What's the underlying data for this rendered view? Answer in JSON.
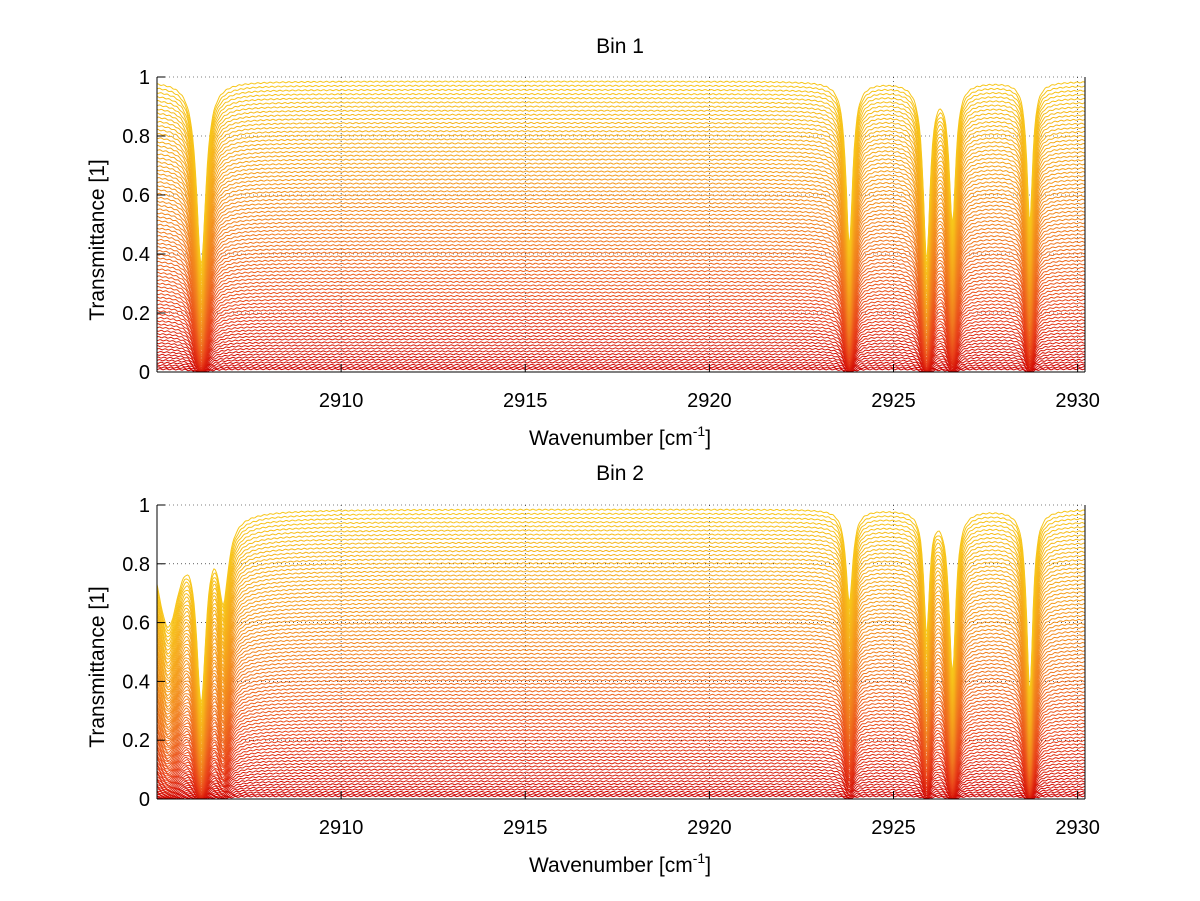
{
  "figure": {
    "background": "#ffffff",
    "line_colormap": [
      "#cc0000",
      "#e8401a",
      "#f07820",
      "#f5a21c",
      "#f7c61b"
    ],
    "top_edge_colors": [
      "#ffd21a",
      "#0fb0a0"
    ]
  },
  "chart_data": [
    {
      "type": "line",
      "title": "Bin 1",
      "xlabel": "Wavenumber [cm",
      "xlabel_sup": "-1",
      "xlabel_close": "]",
      "ylabel": "Transmittance [1]",
      "xlim": [
        2905,
        2930.2
      ],
      "ylim": [
        0,
        1
      ],
      "xticks": [
        2910,
        2915,
        2920,
        2925,
        2930
      ],
      "xtick_labels": [
        "2910",
        "2915",
        "2920",
        "2925",
        "2930"
      ],
      "yticks": [
        0,
        0.2,
        0.4,
        0.6,
        0.8,
        1
      ],
      "ytick_labels": [
        "0",
        "0.2",
        "0.4",
        "0.6",
        "0.8",
        "1"
      ],
      "grid": true,
      "n_series": 80,
      "baseline_range": [
        0.01,
        0.985
      ],
      "absorption_lines": [
        {
          "x": 2906.2,
          "width": 0.12,
          "depth": 0.9
        },
        {
          "x": 2923.8,
          "width": 0.09,
          "depth": 0.75
        },
        {
          "x": 2925.9,
          "width": 0.09,
          "depth": 0.85
        },
        {
          "x": 2926.6,
          "width": 0.09,
          "depth": 0.6
        },
        {
          "x": 2928.7,
          "width": 0.08,
          "depth": 0.6
        }
      ]
    },
    {
      "type": "line",
      "title": "Bin 2",
      "xlabel": "Wavenumber [cm",
      "xlabel_sup": "-1",
      "xlabel_close": "]",
      "ylabel": "Transmittance [1]",
      "xlim": [
        2905,
        2930.2
      ],
      "ylim": [
        0,
        1
      ],
      "xticks": [
        2910,
        2915,
        2920,
        2925,
        2930
      ],
      "xtick_labels": [
        "2910",
        "2915",
        "2920",
        "2925",
        "2930"
      ],
      "yticks": [
        0,
        0.2,
        0.4,
        0.6,
        0.8,
        1
      ],
      "ytick_labels": [
        "0",
        "0.2",
        "0.4",
        "0.6",
        "0.8",
        "1"
      ],
      "grid": true,
      "n_series": 80,
      "baseline_range": [
        0.01,
        0.985
      ],
      "absorption_lines": [
        {
          "x": 2905.3,
          "width": 0.35,
          "depth": 0.45
        },
        {
          "x": 2906.2,
          "width": 0.12,
          "depth": 0.92
        },
        {
          "x": 2906.8,
          "width": 0.15,
          "depth": 0.3
        },
        {
          "x": 2923.8,
          "width": 0.1,
          "depth": 0.35
        },
        {
          "x": 2925.9,
          "width": 0.08,
          "depth": 0.5
        },
        {
          "x": 2926.6,
          "width": 0.09,
          "depth": 0.75
        },
        {
          "x": 2928.7,
          "width": 0.08,
          "depth": 0.9
        }
      ]
    }
  ]
}
